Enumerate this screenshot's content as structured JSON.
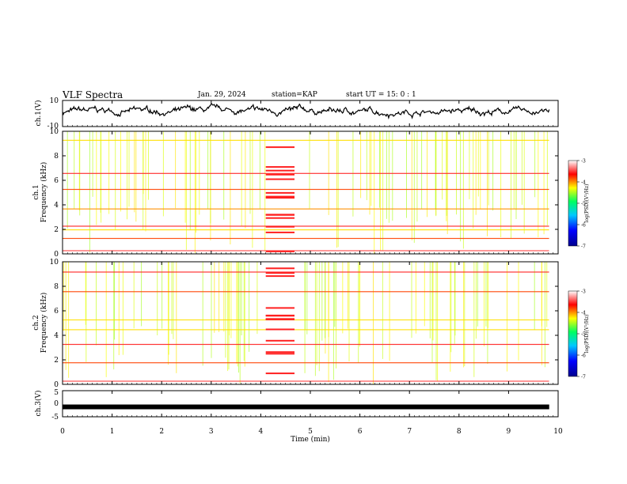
{
  "header": {
    "title": "VLF Spectra",
    "date": "Jan. 29, 2024",
    "station": "station=KAP",
    "start_ut": "start UT =  15: 0  : 1"
  },
  "chart_data": [
    {
      "type": "line",
      "panel": "ch1-waveform",
      "ylabel": "ch.1(V)",
      "ylim": [
        -10,
        10
      ],
      "yticks": [
        "10",
        "-10"
      ],
      "xlim": [
        0,
        10
      ],
      "x_end": 9.82,
      "series_level_v": 1.5,
      "series_amplitude_v": 6,
      "color": "#000000"
    },
    {
      "type": "heatmap",
      "panel": "ch1-spectrogram",
      "ylabel_line1": "ch.1",
      "ylabel_line2": "Frequency (kHz)",
      "ylim": [
        0,
        10
      ],
      "yticks": [
        "0",
        "2",
        "4",
        "6",
        "8",
        "10"
      ],
      "xlim": [
        0,
        10
      ],
      "x_end": 9.82,
      "burst_interval_min": [
        4.1,
        4.68
      ],
      "colorbar": {
        "label": "log(PSD)(V²/Hz)",
        "range": [
          -7,
          -3
        ],
        "ticks": [
          "-3",
          "-4",
          "-5",
          "-6",
          "-7"
        ]
      }
    },
    {
      "type": "heatmap",
      "panel": "ch2-spectrogram",
      "ylabel_line1": "ch.2",
      "ylabel_line2": "Frequency (kHz)",
      "ylim": [
        0,
        10
      ],
      "yticks": [
        "0",
        "2",
        "4",
        "6",
        "8",
        "10"
      ],
      "xlim": [
        0,
        10
      ],
      "x_end": 9.82,
      "burst_interval_min": [
        4.1,
        4.68
      ],
      "colorbar": {
        "label": "log(PSD)(V²/Hz)",
        "range": [
          -7,
          -3
        ],
        "ticks": [
          "-3",
          "-4",
          "-5",
          "-6",
          "-7"
        ]
      }
    },
    {
      "type": "line",
      "panel": "ch3-waveform",
      "ylabel": "ch.3(V)",
      "ylim": [
        -5,
        5
      ],
      "yticks": [
        "5",
        "0",
        "-5"
      ],
      "xlim": [
        0,
        10
      ],
      "x_end": 9.82,
      "series_level_v": -1.2,
      "color": "#000000",
      "xlabel": "Time  (min)",
      "xticks": [
        "0",
        "1",
        "2",
        "3",
        "4",
        "5",
        "6",
        "7",
        "8",
        "9",
        "10"
      ]
    }
  ]
}
